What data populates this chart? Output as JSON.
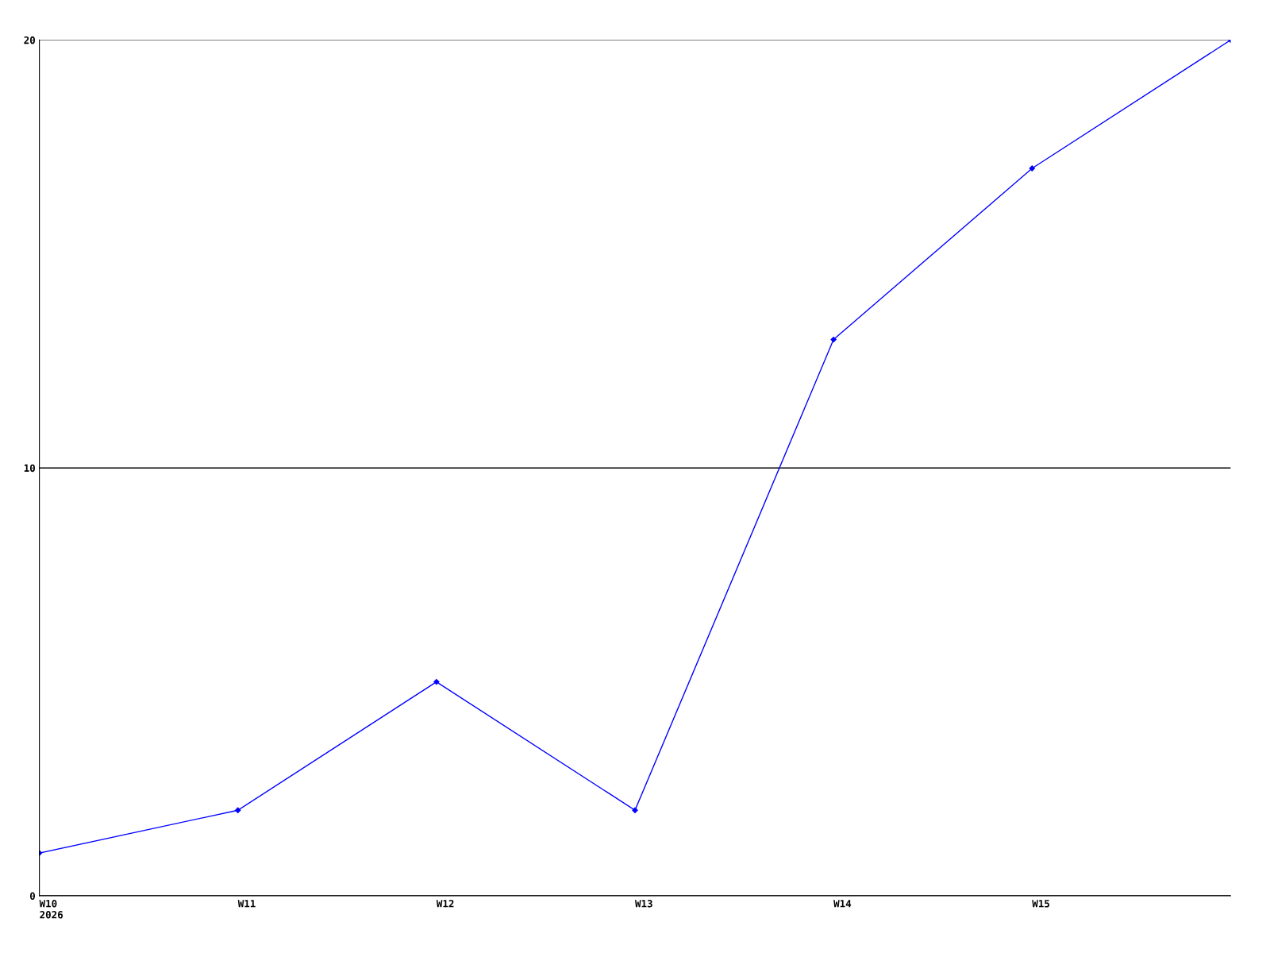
{
  "chart_data": {
    "type": "line",
    "categories": [
      "W10\n2026",
      "W11",
      "W12",
      "W13",
      "W14",
      "W15",
      null
    ],
    "series": [
      {
        "color": "#0000ff",
        "values": [
          1,
          2,
          5,
          2,
          13,
          17,
          20
        ]
      }
    ],
    "ylim": [
      0,
      20
    ],
    "yticks": [
      0,
      10,
      20
    ],
    "grid": "y",
    "marker": "diamond",
    "line_style": "solid"
  }
}
